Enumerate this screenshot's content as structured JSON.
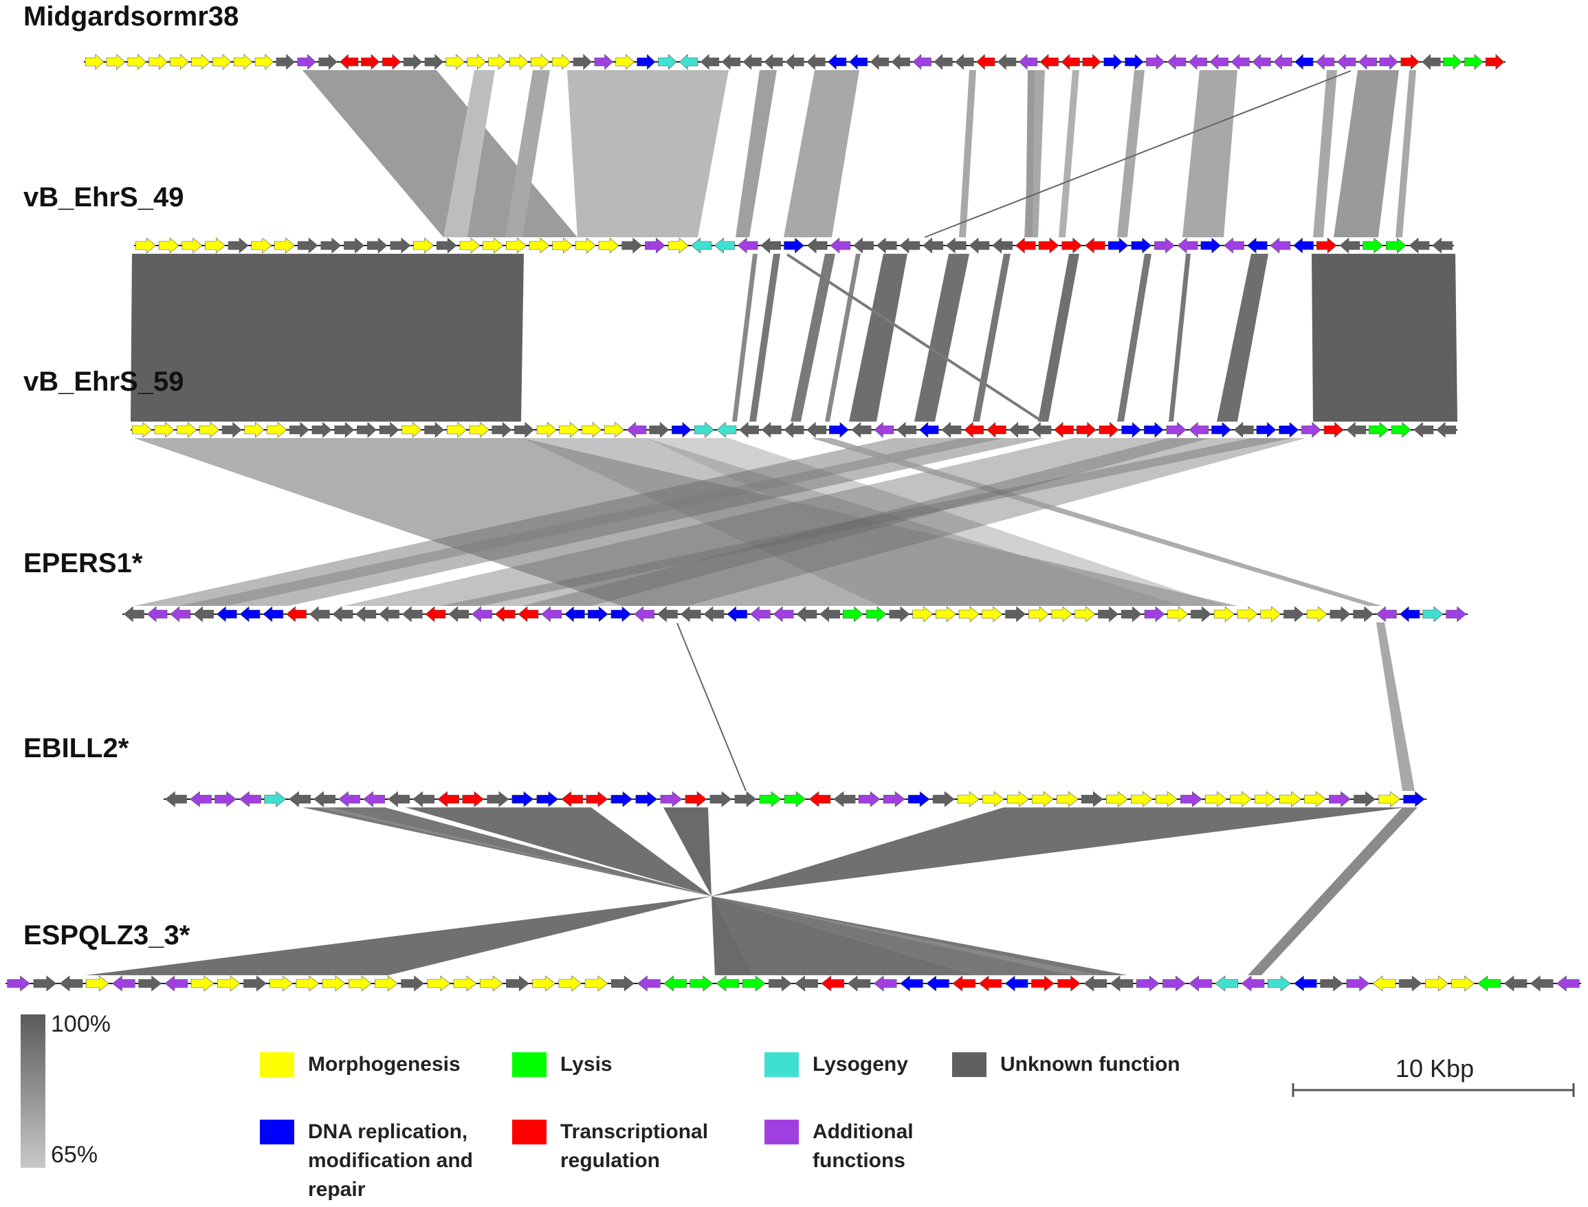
{
  "genomes": [
    {
      "name": "Midgardsormr38"
    },
    {
      "name": "vB_EhrS_49"
    },
    {
      "name": "vB_EhrS_59"
    },
    {
      "name": "EPERS1*"
    },
    {
      "name": "EBILL2*"
    },
    {
      "name": "ESPQLZ3_3*"
    }
  ],
  "identity_scale": {
    "max_label": "100%",
    "min_label": "65%",
    "max_color": "#5a5a5a",
    "min_color": "#c8c8c8"
  },
  "legend": [
    {
      "label": "Morphogenesis",
      "color": "#ffff00"
    },
    {
      "label": "Lysis",
      "color": "#00ff00"
    },
    {
      "label": "Lysogeny",
      "color": "#40e0d0"
    },
    {
      "label": "Unknown function",
      "color": "#606060"
    },
    {
      "label": "DNA replication,\nmodification and\nrepair",
      "color": "#0000ff"
    },
    {
      "label": "Transcriptional\nregulation",
      "color": "#ff0000"
    },
    {
      "label": "Additional\nfunctions",
      "color": "#a040e0"
    }
  ],
  "scale_bar": {
    "label": "10 Kbp"
  },
  "colors": {
    "Y": "#ffff00",
    "L": "#00ff00",
    "T": "#40e0d0",
    "G": "#606060",
    "B": "#0000ff",
    "R": "#ff0000",
    "P": "#a040e0",
    "backbone": "#222222"
  },
  "gene_tracks": [
    "Y+ Y+ Y+ Y+ Y+ Y+ Y+ Y+ Y+ G+ P+ G+ R- R+ R+ G+ G+ Y+ Y+ Y+ Y+ Y+ Y+ G+ P+ Y+ B+ T+ T- G- G- G- G- G- G- B- B- G- G- P- G- G- R- G- P- R- R- R+ B+ B+ P+ P- P- P- P- P- P- B- P- P- P- P+ R+ G- L+ L+ R+",
    "Y+ Y+ Y+ Y+ G+ Y+ Y+ G+ G+ G+ G+ G+ Y+ G+ Y+ Y+ Y+ Y+ Y+ Y+ Y+ G+ P+ Y+ T- T- P- G- B+ G- P- G- G- G- G- G- G- G- R- R+ R+ R- B+ B+ P+ P- B+ P- B- P- B- R+ G- L+ L+ G- G-",
    "Y+ Y+ Y+ Y+ G+ Y+ Y+ G+ G+ G+ G+ G+ Y+ G+ Y+ Y+ G+ G+ Y+ Y+ Y+ Y+ P- G+ B+ T+ T- G- G- G- G- B+ G- P- G- B- G- R- R- G- G- R- R+ R+ B+ B+ P+ P- B+ G- B+ B+ P+ R+ G- L+ L+ G- G-",
    "G- P- P- G- B- B- B- R- G- G- G- G- G- R- G- P- R- R- P- B- B+ B+ P- G- G- G- B- P- P- G- G- L+ L+ G+ Y+ Y+ Y+ Y+ G+ Y+ Y+ Y+ G+ G+ P+ Y+ G+ Y+ Y+ Y+ G+ Y+ G+ G+ P- B- T+ P+",
    "G- P- P+ P- T+ G- G- P- P- G- G- R- R+ G+ B+ B+ R- R+ B+ B+ P+ R+ G+ G+ L+ L+ R- G- P+ P+ B+ G+ Y+ Y+ Y+ Y+ Y+ G+ Y+ Y+ Y+ P+ Y+ Y+ Y+ Y+ Y+ P+ G+ Y+ B+",
    "P+ G+ G- Y+ P- G+ P- Y+ Y+ G+ Y+ Y+ Y+ Y+ Y+ G+ Y+ Y+ Y+ G+ Y+ Y+ Y+ G+ P- L- L+ L- L+ G+ G- R- G- P- B- B- R- R- B- R+ R+ G- G- P+ P+ P- T- P- T+ B- G+ P+ Y- G+ Y+ Y+ L- G- G- P-"
  ]
}
